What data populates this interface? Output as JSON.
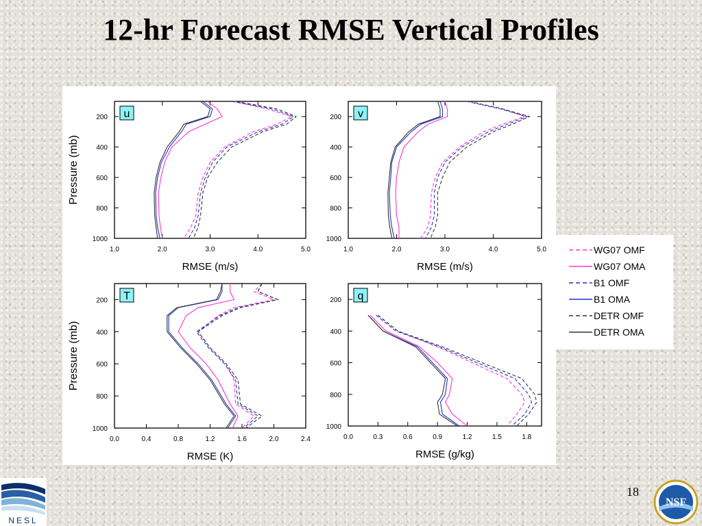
{
  "slide": {
    "title": "12-hr Forecast RMSE Vertical Profiles",
    "page_number": "18",
    "logo_left_text": "NESL",
    "logo_right_text": "NSF"
  },
  "legend": {
    "entries": [
      {
        "label": "WG07 OMF",
        "color": "#ff33cc",
        "dash": true
      },
      {
        "label": "WG07 OMA",
        "color": "#ff33cc",
        "dash": false
      },
      {
        "label": "B1 OMF",
        "color": "#1a33cc",
        "dash": true
      },
      {
        "label": "B1 OMA",
        "color": "#1a33cc",
        "dash": false
      },
      {
        "label": "DETR OMF",
        "color": "#333333",
        "dash": true
      },
      {
        "label": "DETR OMA",
        "color": "#333333",
        "dash": false
      }
    ]
  },
  "chart_data": [
    {
      "type": "line",
      "panel_label": "u",
      "xlabel": "RMSE (m/s)",
      "ylabel": "Pressure (mb)",
      "xlim": [
        1.0,
        5.0
      ],
      "ylim": [
        1000,
        100
      ],
      "xticks": [
        "1.0",
        "2.0",
        "3.0",
        "4.0",
        "5.0"
      ],
      "yticks": [
        "200",
        "400",
        "600",
        "800",
        "1000"
      ],
      "y": [
        100,
        150,
        200,
        250,
        300,
        400,
        500,
        600,
        700,
        850,
        925,
        1000
      ],
      "series": [
        {
          "name": "WG07 OMF",
          "values": [
            3.5,
            4.2,
            4.7,
            4.4,
            3.9,
            3.3,
            3.0,
            2.85,
            2.75,
            2.7,
            2.6,
            2.45
          ]
        },
        {
          "name": "WG07 OMA",
          "values": [
            2.95,
            3.15,
            3.25,
            2.9,
            2.55,
            2.2,
            2.05,
            1.97,
            1.92,
            1.93,
            1.96,
            2.0
          ]
        },
        {
          "name": "B1 OMF",
          "values": [
            3.45,
            4.3,
            4.75,
            4.5,
            4.0,
            3.35,
            3.05,
            2.9,
            2.8,
            2.75,
            2.68,
            2.55
          ]
        },
        {
          "name": "B1 OMA",
          "values": [
            2.85,
            3.05,
            3.0,
            2.5,
            2.4,
            2.15,
            1.98,
            1.9,
            1.86,
            1.87,
            1.9,
            1.95
          ]
        },
        {
          "name": "DETR OMF",
          "values": [
            3.55,
            4.4,
            4.8,
            4.6,
            4.1,
            3.45,
            3.15,
            2.95,
            2.85,
            2.8,
            2.75,
            2.65
          ]
        },
        {
          "name": "DETR OMA",
          "values": [
            2.8,
            3.0,
            2.95,
            2.45,
            2.35,
            2.1,
            1.95,
            1.87,
            1.83,
            1.84,
            1.87,
            1.9
          ]
        }
      ]
    },
    {
      "type": "line",
      "panel_label": "v",
      "xlabel": "RMSE (m/s)",
      "ylabel": "",
      "xlim": [
        1.0,
        5.0
      ],
      "ylim": [
        1000,
        100
      ],
      "xticks": [
        "1.0",
        "2.0",
        "3.0",
        "4.0",
        "5.0"
      ],
      "yticks": [
        "200",
        "400",
        "600",
        "800",
        "1000"
      ],
      "y": [
        100,
        150,
        200,
        250,
        300,
        400,
        500,
        600,
        700,
        850,
        925,
        1000
      ],
      "series": [
        {
          "name": "WG07 OMF",
          "values": [
            3.5,
            4.2,
            4.65,
            4.2,
            3.8,
            3.3,
            2.95,
            2.8,
            2.72,
            2.7,
            2.65,
            2.5
          ]
        },
        {
          "name": "WG07 OMA",
          "values": [
            3.0,
            3.05,
            3.05,
            2.65,
            2.45,
            2.15,
            2.05,
            2.0,
            1.98,
            2.0,
            2.05,
            2.05
          ]
        },
        {
          "name": "B1 OMF",
          "values": [
            3.45,
            4.15,
            4.7,
            4.3,
            3.9,
            3.35,
            3.0,
            2.85,
            2.78,
            2.78,
            2.72,
            2.6
          ]
        },
        {
          "name": "B1 OMA",
          "values": [
            2.9,
            2.95,
            2.95,
            2.5,
            2.3,
            2.0,
            1.9,
            1.88,
            1.85,
            1.87,
            1.9,
            1.95
          ]
        },
        {
          "name": "DETR OMF",
          "values": [
            3.5,
            4.2,
            4.75,
            4.4,
            4.0,
            3.45,
            3.1,
            2.95,
            2.85,
            2.85,
            2.8,
            2.7
          ]
        },
        {
          "name": "DETR OMA",
          "values": [
            2.85,
            2.9,
            2.9,
            2.45,
            2.25,
            1.97,
            1.88,
            1.85,
            1.82,
            1.83,
            1.86,
            1.9
          ]
        }
      ]
    },
    {
      "type": "line",
      "panel_label": "T",
      "xlabel": "RMSE (K)",
      "ylabel": "Pressure (mb)",
      "xlim": [
        0.0,
        2.4
      ],
      "ylim": [
        1000,
        100
      ],
      "xticks": [
        "0.0",
        "0.4",
        "0.8",
        "1.2",
        "1.6",
        "2.0",
        "2.4"
      ],
      "yticks": [
        "200",
        "400",
        "600",
        "800",
        "1000"
      ],
      "y": [
        100,
        150,
        200,
        250,
        300,
        400,
        500,
        600,
        700,
        850,
        925,
        1000
      ],
      "series": [
        {
          "name": "WG07 OMF",
          "values": [
            1.85,
            1.75,
            2.0,
            1.5,
            1.3,
            1.05,
            1.2,
            1.4,
            1.5,
            1.52,
            1.75,
            1.6
          ]
        },
        {
          "name": "WG07 OMA",
          "values": [
            1.45,
            1.45,
            1.5,
            1.05,
            0.9,
            0.8,
            0.95,
            1.15,
            1.3,
            1.45,
            1.55,
            1.48
          ]
        },
        {
          "name": "B1 OMF",
          "values": [
            1.85,
            1.8,
            2.05,
            1.55,
            1.32,
            1.03,
            1.18,
            1.38,
            1.52,
            1.55,
            1.8,
            1.62
          ]
        },
        {
          "name": "B1 OMA",
          "values": [
            1.35,
            1.35,
            1.3,
            0.8,
            0.68,
            0.68,
            0.85,
            1.05,
            1.22,
            1.4,
            1.52,
            1.42
          ]
        },
        {
          "name": "DETR OMF",
          "values": [
            1.85,
            1.8,
            2.05,
            1.58,
            1.35,
            1.05,
            1.2,
            1.4,
            1.55,
            1.58,
            1.85,
            1.65
          ]
        },
        {
          "name": "DETR OMA",
          "values": [
            1.35,
            1.33,
            1.28,
            0.78,
            0.66,
            0.66,
            0.83,
            1.03,
            1.2,
            1.38,
            1.5,
            1.4
          ]
        }
      ]
    },
    {
      "type": "line",
      "panel_label": "q",
      "xlabel": "RMSE (g/kg)",
      "ylabel": "",
      "xlim": [
        0.0,
        1.95
      ],
      "ylim": [
        1000,
        100
      ],
      "xticks": [
        "0.0",
        "0.3",
        "0.6",
        "0.9",
        "1.2",
        "1.5",
        "1.8"
      ],
      "yticks": [
        "200",
        "400",
        "600",
        "800",
        "1000"
      ],
      "y": [
        300,
        400,
        500,
        600,
        700,
        800,
        850,
        925,
        1000
      ],
      "series": [
        {
          "name": "WG07 OMF",
          "values": [
            0.3,
            0.5,
            0.9,
            1.25,
            1.6,
            1.75,
            1.78,
            1.7,
            1.6
          ]
        },
        {
          "name": "WG07 OMA",
          "values": [
            0.22,
            0.38,
            0.72,
            0.9,
            1.05,
            1.02,
            0.98,
            1.05,
            1.2
          ]
        },
        {
          "name": "B1 OMF",
          "values": [
            0.28,
            0.48,
            0.92,
            1.3,
            1.68,
            1.82,
            1.85,
            1.78,
            1.65
          ]
        },
        {
          "name": "B1 OMA",
          "values": [
            0.2,
            0.35,
            0.7,
            0.85,
            1.0,
            0.98,
            0.93,
            0.95,
            1.12
          ]
        },
        {
          "name": "DETR OMF",
          "values": [
            0.3,
            0.5,
            0.95,
            1.35,
            1.75,
            1.88,
            1.9,
            1.82,
            1.7
          ]
        },
        {
          "name": "DETR OMA",
          "values": [
            0.2,
            0.35,
            0.68,
            0.83,
            0.98,
            0.95,
            0.9,
            0.92,
            1.1
          ]
        }
      ]
    }
  ]
}
